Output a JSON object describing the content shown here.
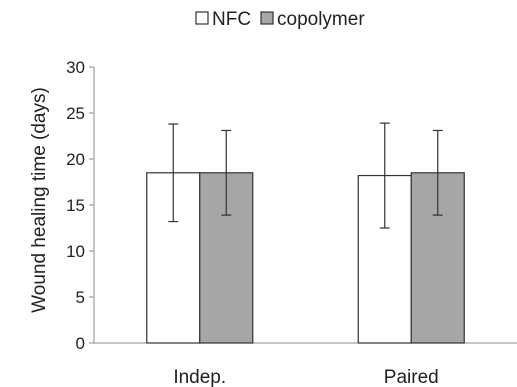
{
  "chart_data": {
    "type": "bar",
    "title": "",
    "xlabel": "",
    "ylabel": "Wound healing time (days)",
    "ylim": [
      0,
      30
    ],
    "yticks": [
      0,
      5,
      10,
      15,
      20,
      25,
      30
    ],
    "categories": [
      "Indep.",
      "Paired"
    ],
    "series": [
      {
        "name": "NFC",
        "values": [
          18.5,
          18.2
        ],
        "error": [
          5.3,
          5.7
        ],
        "color": "#ffffff"
      },
      {
        "name": "copolymer",
        "values": [
          18.5,
          18.5
        ],
        "error": [
          4.6,
          4.6
        ],
        "color": "#a6a6a6"
      }
    ],
    "error_bars": true,
    "grid": false,
    "legend": {
      "position": "top"
    }
  }
}
